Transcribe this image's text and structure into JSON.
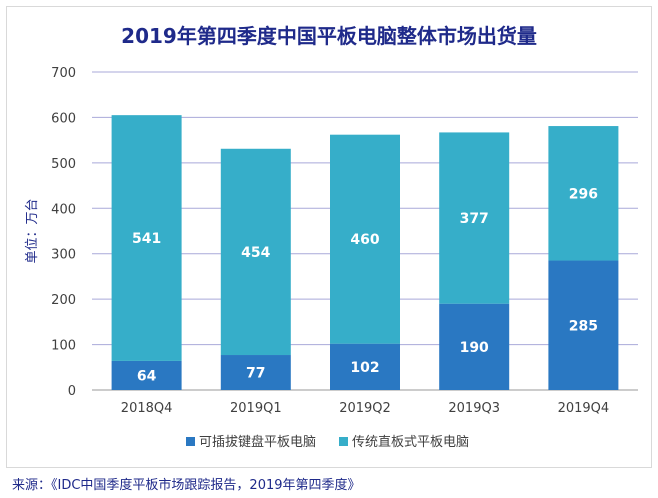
{
  "chart_data": {
    "type": "bar",
    "stacked": true,
    "title": "2019年第四季度中国平板电脑整体市场出货量",
    "ylabel": "单位：万台",
    "xlabel": "",
    "ylim": [
      0,
      700
    ],
    "yticks": [
      0,
      100,
      200,
      300,
      400,
      500,
      600,
      700
    ],
    "grid": true,
    "legend_position": "bottom",
    "categories": [
      "2018Q4",
      "2019Q1",
      "2019Q2",
      "2019Q3",
      "2019Q4"
    ],
    "series": [
      {
        "name": "可插拔键盘平板电脑",
        "color": "#2a78c2",
        "values": [
          64,
          77,
          102,
          190,
          285
        ]
      },
      {
        "name": "传统直板式平板电脑",
        "color": "#36aec9",
        "values": [
          541,
          454,
          460,
          377,
          296
        ]
      }
    ]
  },
  "source": "来源：《IDC中国季度平板市场跟踪报告，2019年第四季度》"
}
